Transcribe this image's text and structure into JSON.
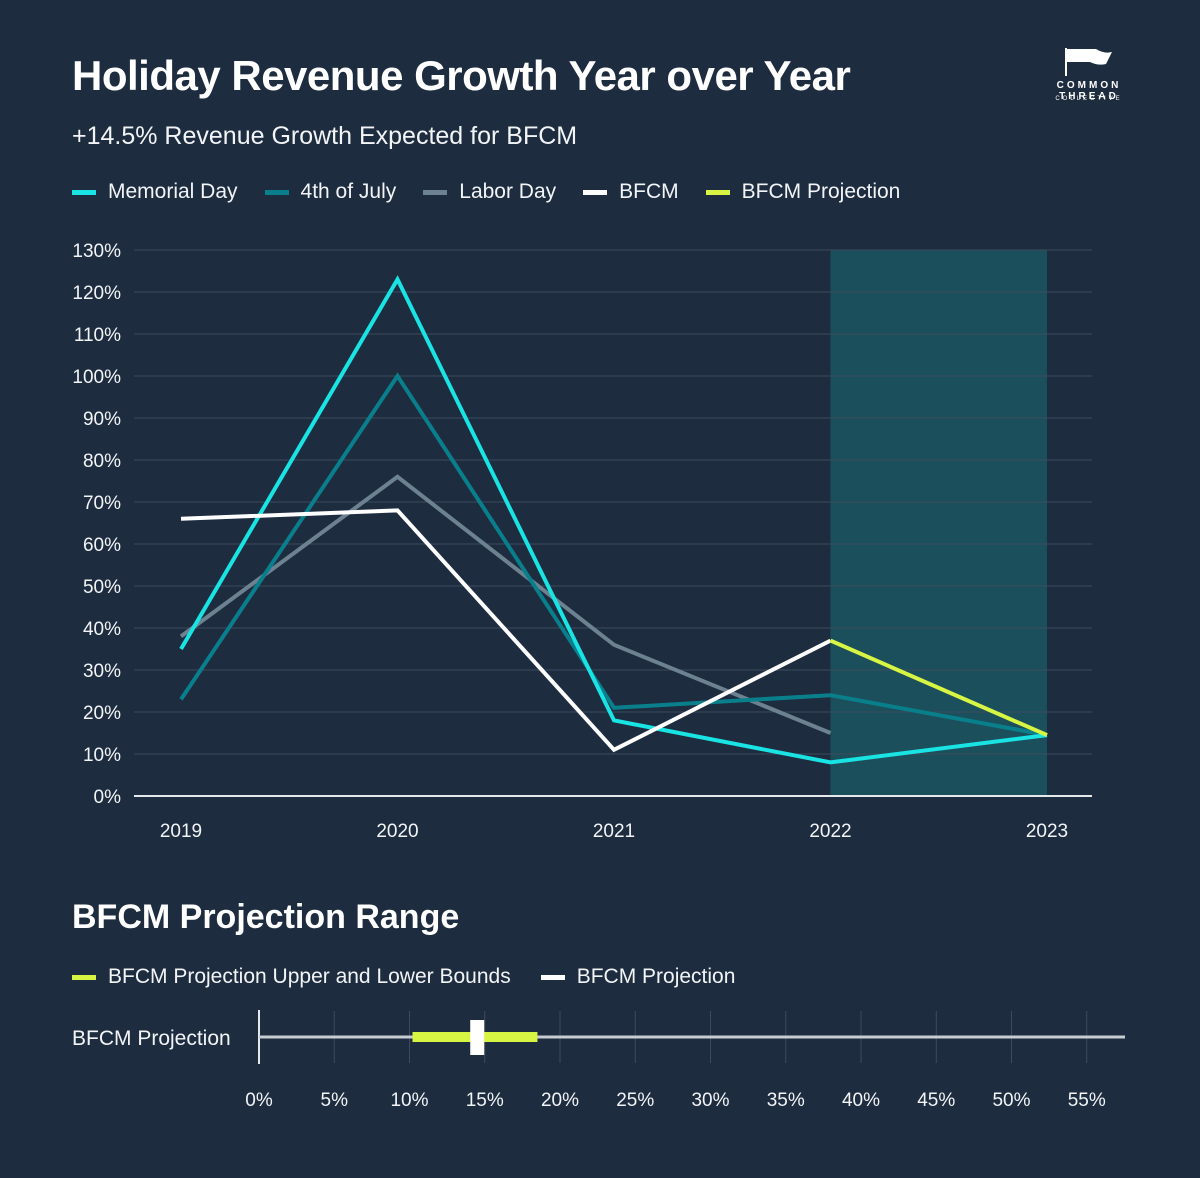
{
  "header": {
    "title": "Holiday Revenue Growth Year over Year",
    "subtitle": "+14.5% Revenue Growth Expected for BFCM"
  },
  "logo": {
    "brand": "COMMON THREAD",
    "sub": "COLLECTIVE",
    "icon": "flag-icon"
  },
  "colors": {
    "background": "#1d2c3f",
    "gridline": "#3c4b5d",
    "highlight_band": "#1b4f5c",
    "memorial_day": "#19e3e3",
    "fourth_of_july": "#0a7f8c",
    "labor_day": "#6d8290",
    "bfcm": "#ffffff",
    "bfcm_projection": "#d7f542"
  },
  "chart_data": [
    {
      "type": "line",
      "title": "Holiday Revenue Growth Year over Year",
      "subtitle": "+14.5% Revenue Growth Expected for BFCM",
      "categories": [
        "2019",
        "2020",
        "2021",
        "2022",
        "2023"
      ],
      "y_ticks": [
        "0%",
        "10%",
        "20%",
        "30%",
        "40%",
        "50%",
        "60%",
        "70%",
        "80%",
        "90%",
        "100%",
        "110%",
        "120%",
        "130%"
      ],
      "ylim": [
        0,
        130
      ],
      "grid": true,
      "legend_position": "top-left",
      "highlight_range": [
        "2022",
        "2023"
      ],
      "series": [
        {
          "name": "Memorial Day",
          "values": [
            35,
            123,
            18,
            8,
            14.5
          ]
        },
        {
          "name": "4th of July",
          "values": [
            23,
            100,
            21,
            24,
            14.5
          ]
        },
        {
          "name": "Labor Day",
          "values": [
            38,
            76,
            36,
            15,
            null
          ]
        },
        {
          "name": "BFCM",
          "values": [
            66,
            68,
            11,
            37,
            null
          ]
        },
        {
          "name": "BFCM Projection",
          "values": [
            null,
            null,
            null,
            37,
            14.5
          ]
        }
      ]
    },
    {
      "type": "bar",
      "title": "BFCM Projection Range",
      "orientation": "horizontal",
      "categories": [
        "BFCM Projection"
      ],
      "x_ticks": [
        "0%",
        "5%",
        "10%",
        "15%",
        "20%",
        "25%",
        "30%",
        "35%",
        "40%",
        "45%",
        "50%",
        "55%"
      ],
      "xlim": [
        0,
        55
      ],
      "grid": true,
      "legend_position": "top-left",
      "series": [
        {
          "name": "BFCM Projection Upper and Lower Bounds",
          "low": 10.2,
          "high": 18.5
        },
        {
          "name": "BFCM Projection",
          "value": 14.5
        }
      ]
    }
  ],
  "range_section": {
    "title": "BFCM Projection Range"
  }
}
